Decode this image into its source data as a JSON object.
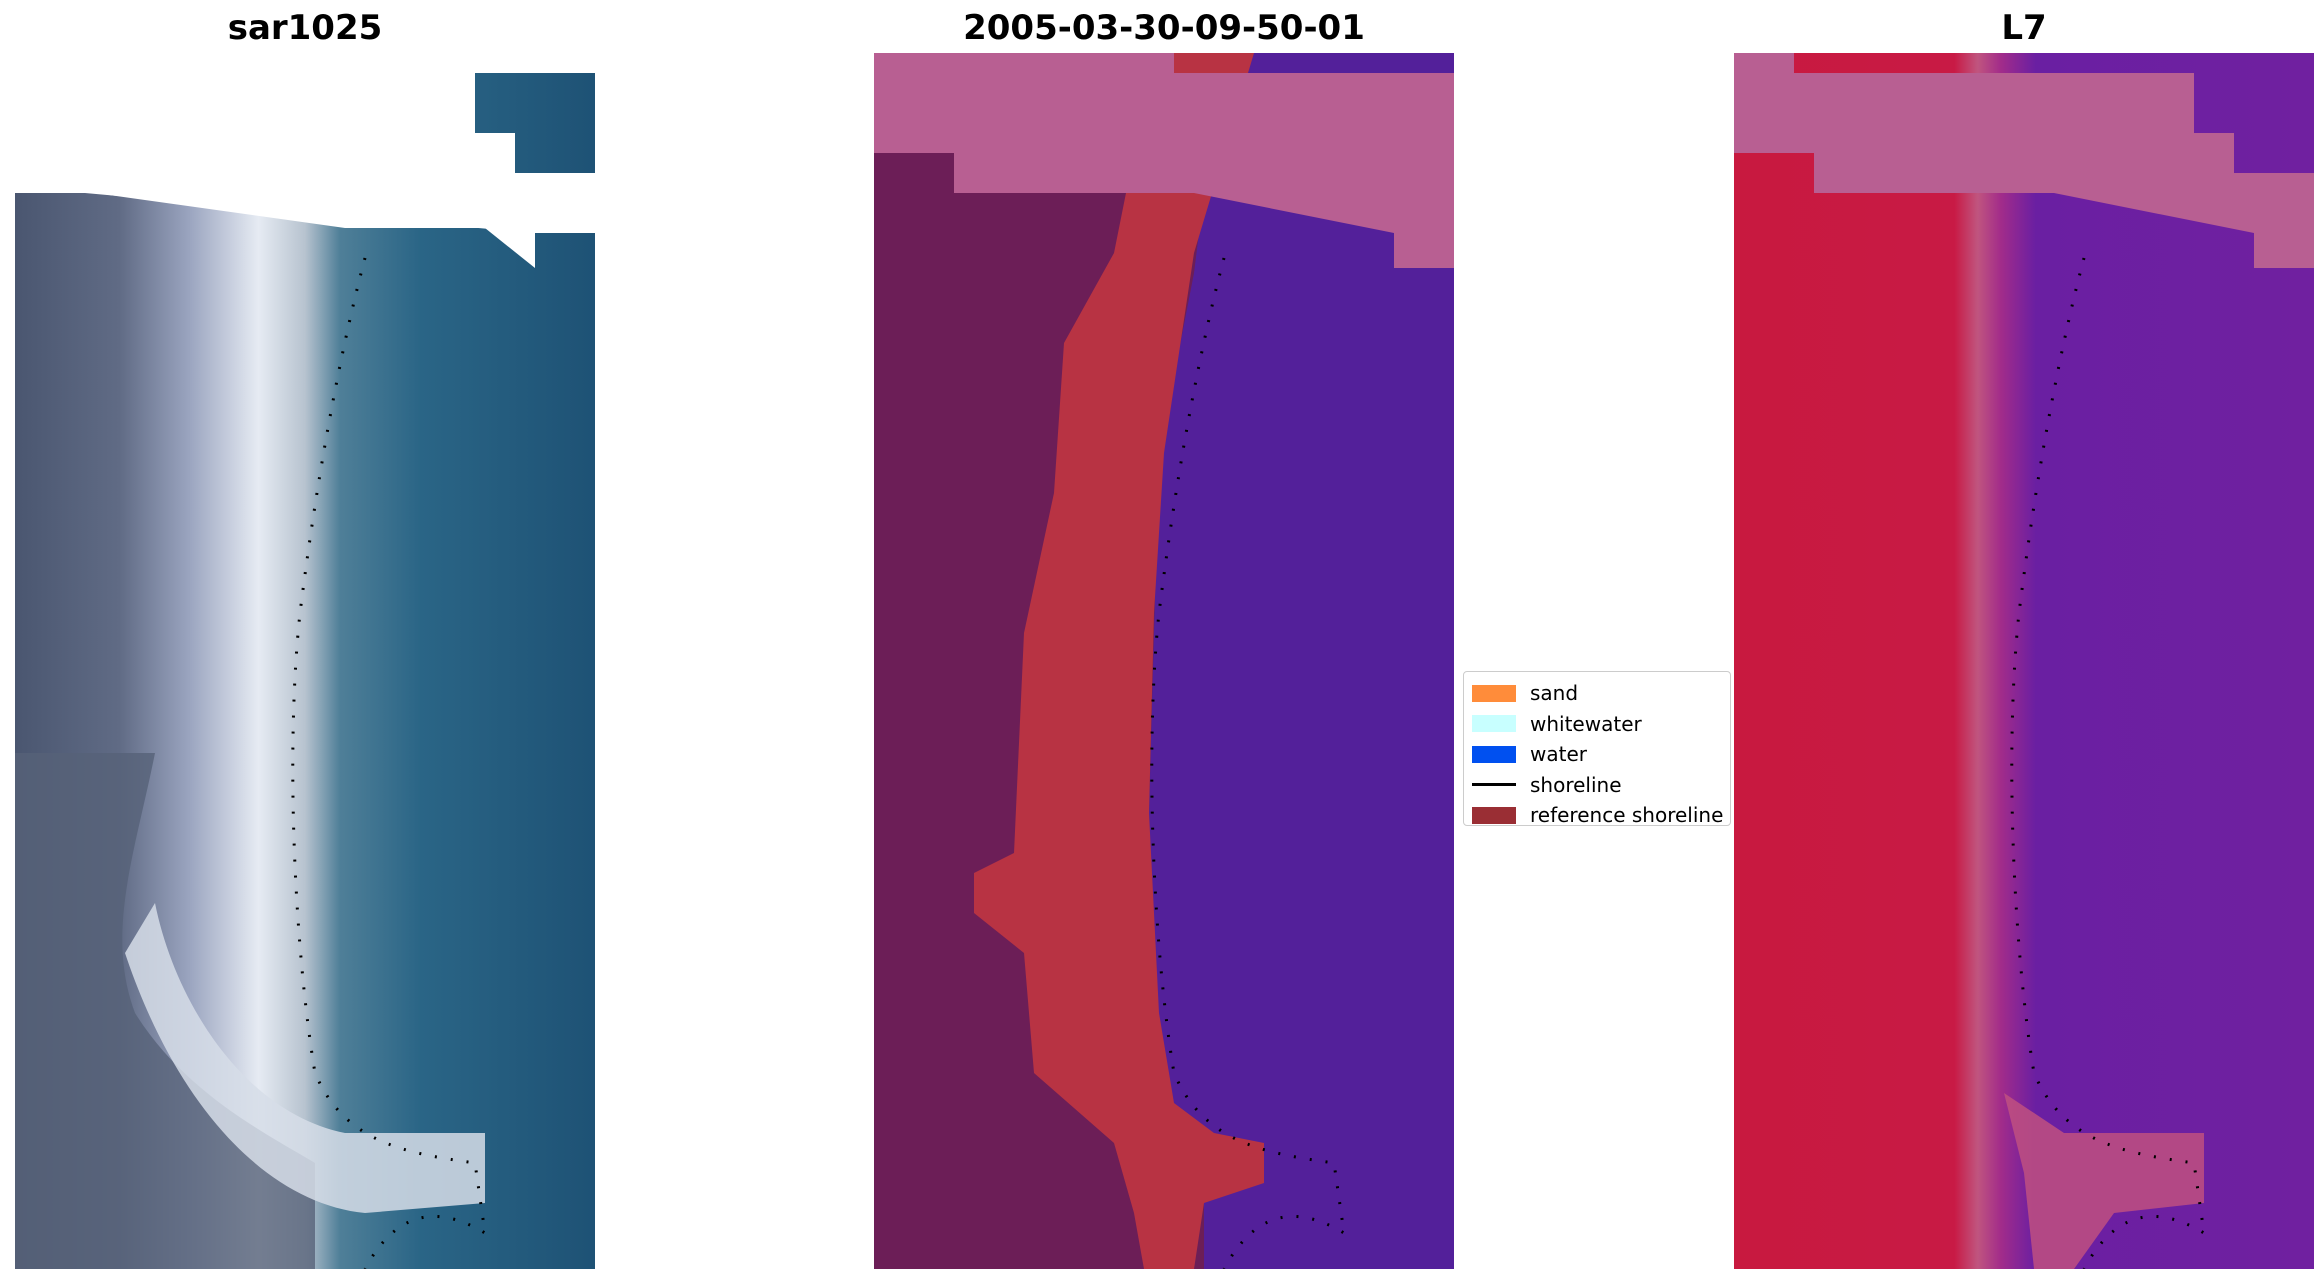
{
  "figure": {
    "panels": [
      {
        "id": "rgb",
        "title": "sar1025"
      },
      {
        "id": "classification",
        "title": "2005-03-30-09-50-01"
      },
      {
        "id": "mndwi",
        "title": "L7"
      }
    ],
    "legend": {
      "items": [
        {
          "label": "sand",
          "color": "#ff8c3a",
          "kind": "patch"
        },
        {
          "label": "whitewater",
          "color": "#c8ffff",
          "kind": "patch"
        },
        {
          "label": "water",
          "color": "#0050f0",
          "kind": "patch"
        },
        {
          "label": "shoreline",
          "color": "#000000",
          "kind": "line"
        },
        {
          "label": "reference shoreline",
          "color": "#9a2e34",
          "kind": "patch"
        }
      ]
    },
    "colors": {
      "rgb_land": "#5a6478",
      "rgb_beach": "#dfe6f0",
      "rgb_water": "#1f5677",
      "cls_land": "#6c1e57",
      "cls_sand": "#b83343",
      "cls_water": "#53209a",
      "cls_cloudmask": "#b85f92",
      "mndwi_land": "#c5183f",
      "mndwi_water": "#6f1ea0",
      "mndwi_cloudmask": "#b85f92"
    }
  }
}
